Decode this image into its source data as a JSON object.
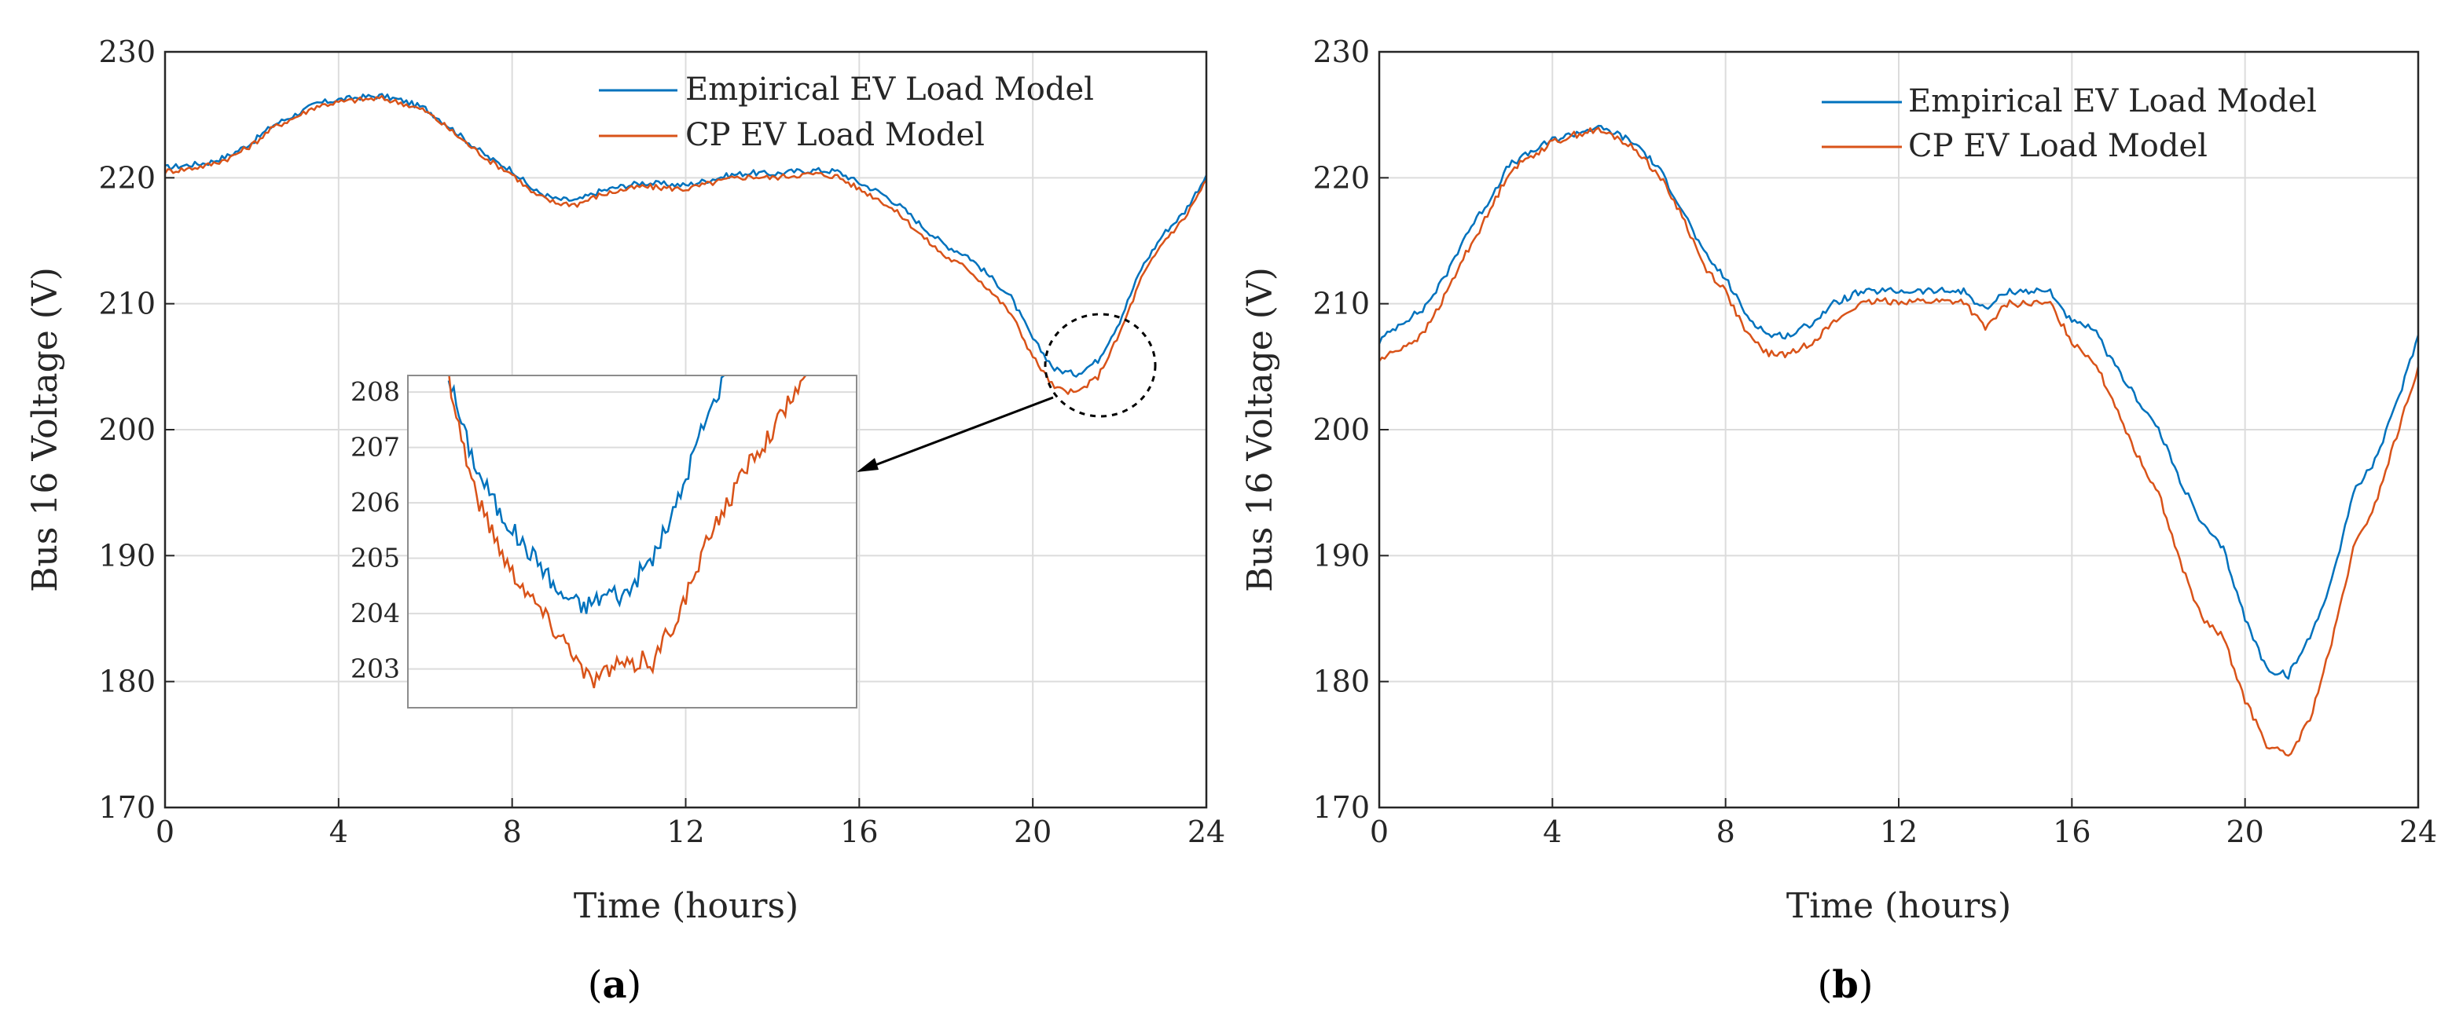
{
  "colors": {
    "empirical": "#0072BD",
    "cp": "#D95319"
  },
  "chart_data": [
    {
      "type": "line",
      "panel_label": "a",
      "xlabel": "Time (hours)",
      "ylabel": "Bus 16 Voltage (V)",
      "xlim": [
        0,
        24
      ],
      "ylim": [
        170,
        230
      ],
      "xticks": [
        "0",
        "4",
        "8",
        "12",
        "16",
        "20",
        "24"
      ],
      "yticks": [
        "170",
        "180",
        "190",
        "200",
        "210",
        "220",
        "230"
      ],
      "grid": true,
      "legend_position": "top-right",
      "series": [
        {
          "name": "Empirical EV Load Model",
          "x": [
            0,
            0.5,
            1,
            1.5,
            2,
            2.5,
            3,
            3.5,
            4,
            4.5,
            5,
            5.5,
            6,
            6.5,
            7,
            7.5,
            8,
            8.5,
            9,
            9.5,
            10,
            10.5,
            11,
            11.5,
            12,
            12.5,
            13,
            13.5,
            14,
            14.5,
            15,
            15.5,
            16,
            16.5,
            17,
            17.5,
            18,
            18.5,
            19,
            19.5,
            20,
            20.5,
            21,
            21.5,
            22,
            22.5,
            23,
            23.5,
            24
          ],
          "y": [
            220.8,
            221,
            221.2,
            221.8,
            222.8,
            224.2,
            225,
            225.9,
            226.2,
            226.4,
            226.5,
            226.1,
            225.5,
            224.2,
            222.8,
            221.5,
            220.6,
            219,
            218.3,
            218.2,
            218.9,
            219.3,
            219.6,
            219.5,
            219.4,
            219.8,
            220.2,
            220.4,
            220.3,
            220.5,
            220.6,
            220.5,
            219.6,
            218.8,
            217.6,
            216,
            214.6,
            213.8,
            212.2,
            210.5,
            207.2,
            204.8,
            204.4,
            205.5,
            208.6,
            212.8,
            215.5,
            217.3,
            220.2
          ]
        },
        {
          "name": "CP EV Load Model",
          "x": [
            0,
            0.5,
            1,
            1.5,
            2,
            2.5,
            3,
            3.5,
            4,
            4.5,
            5,
            5.5,
            6,
            6.5,
            7,
            7.5,
            8,
            8.5,
            9,
            9.5,
            10,
            10.5,
            11,
            11.5,
            12,
            12.5,
            13,
            13.5,
            14,
            14.5,
            15,
            15.5,
            16,
            16.5,
            17,
            17.5,
            18,
            18.5,
            19,
            19.5,
            20,
            20.5,
            21,
            21.5,
            22,
            22.5,
            23,
            23.5,
            24
          ],
          "y": [
            220.5,
            220.7,
            221,
            221.6,
            222.6,
            224,
            224.8,
            225.7,
            226,
            226.2,
            226.3,
            225.9,
            225.3,
            224,
            222.6,
            221.3,
            220.3,
            218.7,
            218,
            217.9,
            218.6,
            219,
            219.3,
            219.2,
            219.1,
            219.5,
            219.9,
            220.1,
            220,
            220.2,
            220.3,
            220.1,
            219.1,
            218.2,
            216.9,
            215.2,
            213.7,
            212.8,
            211.1,
            209.2,
            205.8,
            203.3,
            202.9,
            204.2,
            207.6,
            212,
            214.9,
            216.8,
            219.8
          ]
        }
      ],
      "annotations": [
        {
          "type": "dashed-circle",
          "center_x": 21,
          "center_y": 205,
          "note": "zoom region"
        },
        {
          "type": "arrow",
          "from": "zoom region",
          "to": "inset"
        }
      ],
      "inset": {
        "xlim": [
          19.2,
          23.6
        ],
        "ylim": [
          202.3,
          208.3
        ],
        "yticks": [
          "203",
          "204",
          "205",
          "206",
          "207",
          "208"
        ],
        "series": [
          {
            "name": "Empirical EV Load Model",
            "x": [
              19.6,
              19.7,
              19.8,
              19.9,
              20,
              20.1,
              20.2,
              20.3,
              20.4,
              20.5,
              20.6,
              20.7,
              20.8,
              20.9,
              21,
              21.1,
              21.2,
              21.3,
              21.4,
              21.5,
              21.6,
              21.7,
              21.8,
              21.9,
              22,
              22.1,
              22.2,
              22.3
            ],
            "y": [
              208.3,
              207.6,
              207.0,
              206.5,
              206.2,
              205.8,
              205.6,
              205.3,
              205.1,
              204.9,
              204.6,
              204.3,
              204.3,
              204.1,
              204.2,
              204.3,
              204.4,
              204.3,
              204.5,
              204.8,
              205.0,
              205.4,
              205.8,
              206.3,
              206.9,
              207.4,
              207.8,
              208.3
            ]
          },
          {
            "name": "CP EV Load Model",
            "x": [
              19.6,
              19.7,
              19.8,
              19.9,
              20,
              20.1,
              20.2,
              20.3,
              20.4,
              20.5,
              20.6,
              20.7,
              20.8,
              20.9,
              21,
              21.1,
              21.2,
              21.3,
              21.4,
              21.5,
              21.6,
              21.7,
              21.8,
              21.9,
              22,
              22.1,
              22.2,
              22.3,
              22.4,
              22.5,
              22.6,
              22.7,
              22.8,
              22.9,
              23,
              23.1
            ],
            "y": [
              208.3,
              207.4,
              206.6,
              206.0,
              205.6,
              205.2,
              204.8,
              204.6,
              204.3,
              204.1,
              203.8,
              203.6,
              203.4,
              203.0,
              202.8,
              202.9,
              203.0,
              203.1,
              203.0,
              203.2,
              203.1,
              203.5,
              203.8,
              204.2,
              204.6,
              205.1,
              205.6,
              205.9,
              206.2,
              206.6,
              206.9,
              207.1,
              207.4,
              207.7,
              208.0,
              208.3
            ]
          }
        ]
      }
    },
    {
      "type": "line",
      "panel_label": "b",
      "xlabel": "Time (hours)",
      "ylabel": "Bus 16 Voltage (V)",
      "xlim": [
        0,
        24
      ],
      "ylim": [
        170,
        230
      ],
      "xticks": [
        "0",
        "4",
        "8",
        "12",
        "16",
        "20",
        "24"
      ],
      "yticks": [
        "170",
        "180",
        "190",
        "200",
        "210",
        "220",
        "230"
      ],
      "grid": true,
      "legend_position": "top-right",
      "series": [
        {
          "name": "Empirical EV Load Model",
          "x": [
            0,
            0.5,
            1,
            1.5,
            2,
            2.5,
            3,
            3.5,
            4,
            4.5,
            5,
            5.5,
            6,
            6.5,
            7,
            7.5,
            8,
            8.5,
            9,
            9.5,
            10,
            10.5,
            11,
            11.5,
            12,
            12.5,
            13,
            13.5,
            14,
            14.5,
            15,
            15.5,
            16,
            16.5,
            17,
            17.5,
            18,
            18.5,
            19,
            19.5,
            20,
            20.5,
            21,
            21.5,
            22,
            22.5,
            23,
            23.5,
            24
          ],
          "y": [
            207,
            208.5,
            209.5,
            212,
            215.5,
            218,
            221,
            222,
            223,
            223.5,
            224,
            223.5,
            222.5,
            220.5,
            217.5,
            214,
            212,
            209,
            207.5,
            207.5,
            208.5,
            210,
            210.8,
            211,
            211,
            211,
            211,
            211,
            209.5,
            211,
            211,
            211,
            208.5,
            208,
            205,
            202.5,
            200,
            196,
            192.5,
            190.5,
            185,
            181,
            180.5,
            183.5,
            188,
            195,
            197.5,
            202,
            207.5
          ]
        },
        {
          "name": "CP EV Load Model",
          "x": [
            0,
            0.5,
            1,
            1.5,
            2,
            2.5,
            3,
            3.5,
            4,
            4.5,
            5,
            5.5,
            6,
            6.5,
            7,
            7.5,
            8,
            8.5,
            9,
            9.5,
            10,
            10.5,
            11,
            11.5,
            12,
            12.5,
            13,
            13.5,
            14,
            14.5,
            15,
            15.5,
            16,
            16.5,
            17,
            17.5,
            18,
            18.5,
            19,
            19.5,
            20,
            20.5,
            21,
            21.5,
            22,
            22.5,
            23,
            23.5,
            24
          ],
          "y": [
            205.5,
            206.5,
            207.5,
            210.5,
            214,
            217,
            220.5,
            221.7,
            222.8,
            223.4,
            223.8,
            223.2,
            222,
            220,
            217,
            213,
            211,
            207.5,
            206,
            206,
            207,
            208.5,
            209.8,
            210.2,
            210.2,
            210.2,
            210.2,
            210.2,
            208,
            210,
            210,
            210,
            207,
            205.5,
            202,
            198,
            195,
            189.5,
            185,
            183.5,
            178.5,
            175,
            174,
            177,
            183,
            190.5,
            194,
            199.5,
            205
          ]
        }
      ]
    }
  ]
}
